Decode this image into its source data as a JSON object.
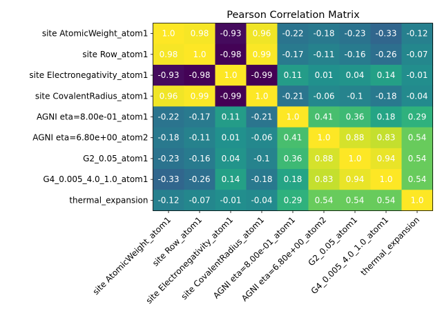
{
  "chart_data": {
    "type": "heatmap",
    "title": "Pearson Correlation Matrix",
    "labels": [
      "site AtomicWeight_atom1",
      "site Row_atom1",
      "site Electronegativity_atom1",
      "site CovalentRadius_atom1",
      "AGNI eta=8.00e-01_atom1",
      "AGNI eta=6.80e+00_atom2",
      "G2_0.05_atom1",
      "G4_0.005_4.0_1.0_atom1",
      "thermal_expansion"
    ],
    "values": [
      [
        1.0,
        0.98,
        -0.93,
        0.96,
        -0.22,
        -0.18,
        -0.23,
        -0.33,
        -0.12
      ],
      [
        0.98,
        1.0,
        -0.98,
        0.99,
        -0.17,
        -0.11,
        -0.16,
        -0.26,
        -0.07
      ],
      [
        -0.93,
        -0.98,
        1.0,
        -0.99,
        0.11,
        0.01,
        0.04,
        0.14,
        -0.01
      ],
      [
        0.96,
        0.99,
        -0.99,
        1.0,
        -0.21,
        -0.06,
        -0.1,
        -0.18,
        -0.04
      ],
      [
        -0.22,
        -0.17,
        0.11,
        -0.21,
        1.0,
        0.41,
        0.36,
        0.18,
        0.29
      ],
      [
        -0.18,
        -0.11,
        0.01,
        -0.06,
        0.41,
        1.0,
        0.88,
        0.83,
        0.54
      ],
      [
        -0.23,
        -0.16,
        0.04,
        -0.1,
        0.36,
        0.88,
        1.0,
        0.94,
        0.54
      ],
      [
        -0.33,
        -0.26,
        0.14,
        -0.18,
        0.18,
        0.83,
        0.94,
        1.0,
        0.54
      ],
      [
        -0.12,
        -0.07,
        -0.01,
        -0.04,
        0.29,
        0.54,
        0.54,
        0.54,
        1.0
      ]
    ],
    "value_labels": [
      [
        "1.0",
        "0.98",
        "-0.93",
        "0.96",
        "-0.22",
        "-0.18",
        "-0.23",
        "-0.33",
        "-0.12"
      ],
      [
        "0.98",
        "1.0",
        "-0.98",
        "0.99",
        "-0.17",
        "-0.11",
        "-0.16",
        "-0.26",
        "-0.07"
      ],
      [
        "-0.93",
        "-0.98",
        "1.0",
        "-0.99",
        "0.11",
        "0.01",
        "0.04",
        "0.14",
        "-0.01"
      ],
      [
        "0.96",
        "0.99",
        "-0.99",
        "1.0",
        "-0.21",
        "-0.06",
        "-0.1",
        "-0.18",
        "-0.04"
      ],
      [
        "-0.22",
        "-0.17",
        "0.11",
        "-0.21",
        "1.0",
        "0.41",
        "0.36",
        "0.18",
        "0.29"
      ],
      [
        "-0.18",
        "-0.11",
        "0.01",
        "-0.06",
        "0.41",
        "1.0",
        "0.88",
        "0.83",
        "0.54"
      ],
      [
        "-0.23",
        "-0.16",
        "0.04",
        "-0.1",
        "0.36",
        "0.88",
        "1.0",
        "0.94",
        "0.54"
      ],
      [
        "-0.33",
        "-0.26",
        "0.14",
        "-0.18",
        "0.18",
        "0.83",
        "0.94",
        "1.0",
        "0.54"
      ],
      [
        "-0.12",
        "-0.07",
        "-0.01",
        "-0.04",
        "0.29",
        "0.54",
        "0.54",
        "0.54",
        "1.0"
      ]
    ],
    "colormap": "viridis",
    "value_range": [
      -0.99,
      1.0
    ],
    "grid": false,
    "legend": "none"
  }
}
